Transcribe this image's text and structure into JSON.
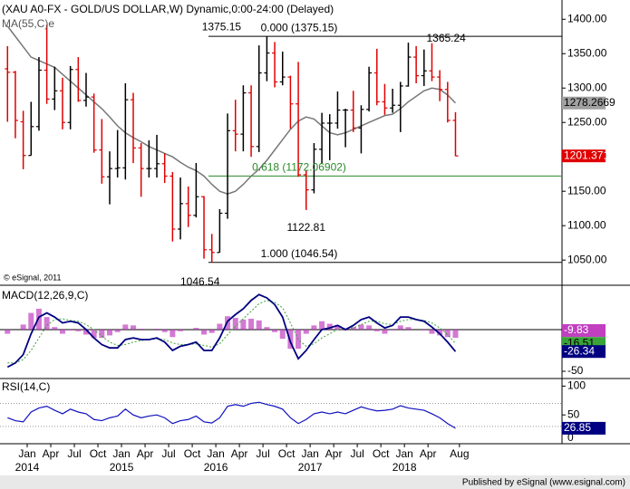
{
  "chart_data": {
    "type": "ohlc",
    "title": "(XAU A0-FX - GOLD/US DOLLAR,W) Dynamic,0:00-24:00 (Delayed)",
    "copyright": "© eSignal, 2011",
    "footer": "Published by eSignal (www.esignal.com)",
    "categories": [
      "2013-10",
      "2013-11",
      "2013-12",
      "2014-01",
      "2014-02",
      "2014-03",
      "2014-04",
      "2014-05",
      "2014-06",
      "2014-07",
      "2014-08",
      "2014-09",
      "2014-10",
      "2014-11",
      "2014-12",
      "2015-01",
      "2015-02",
      "2015-03",
      "2015-04",
      "2015-05",
      "2015-06",
      "2015-07",
      "2015-08",
      "2015-09",
      "2015-10",
      "2015-11",
      "2015-12",
      "2016-01",
      "2016-02",
      "2016-03",
      "2016-04",
      "2016-05",
      "2016-06",
      "2016-07",
      "2016-08",
      "2016-09",
      "2016-10",
      "2016-11",
      "2016-12",
      "2017-01",
      "2017-02",
      "2017-03",
      "2017-04",
      "2017-05",
      "2017-06",
      "2017-07",
      "2017-08",
      "2017-09",
      "2017-10",
      "2017-11",
      "2017-12",
      "2018-01",
      "2018-02",
      "2018-03",
      "2018-04",
      "2018-05",
      "2018-06",
      "2018-07"
    ],
    "open": [
      1328,
      1323,
      1251,
      1202,
      1244,
      1326,
      1284,
      1296,
      1250,
      1327,
      1282,
      1287,
      1210,
      1171,
      1183,
      1184,
      1283,
      1213,
      1183,
      1183,
      1190,
      1172,
      1095,
      1132,
      1115,
      1142,
      1065,
      1061,
      1118,
      1238,
      1233,
      1293,
      1215,
      1322,
      1351,
      1309,
      1316,
      1277,
      1174,
      1152,
      1211,
      1249,
      1249,
      1268,
      1268,
      1242,
      1269,
      1322,
      1280,
      1271,
      1275,
      1303,
      1345,
      1318,
      1325,
      1316,
      1298,
      1253
    ],
    "high": [
      1361,
      1325,
      1267,
      1280,
      1345,
      1392,
      1331,
      1315,
      1332,
      1345,
      1322,
      1292,
      1255,
      1208,
      1239,
      1307,
      1293,
      1220,
      1224,
      1232,
      1205,
      1178,
      1170,
      1157,
      1191,
      1143,
      1088,
      1124,
      1263,
      1283,
      1304,
      1304,
      1362,
      1375.15,
      1367,
      1353,
      1318,
      1338,
      1180,
      1220,
      1264,
      1262,
      1295,
      1270,
      1296,
      1275,
      1331,
      1357,
      1306,
      1299,
      1309,
      1366,
      1361,
      1356,
      1365.24,
      1326,
      1309,
      1265
    ],
    "low": [
      1251,
      1227,
      1182,
      1202,
      1238,
      1277,
      1268,
      1240,
      1240,
      1280,
      1273,
      1206,
      1161,
      1131,
      1170,
      1167,
      1191,
      1142,
      1170,
      1170,
      1162,
      1077,
      1080,
      1098,
      1112,
      1052,
      1046.54,
      1061,
      1110,
      1208,
      1208,
      1200,
      1207,
      1310,
      1301,
      1304,
      1241,
      1171,
      1122.81,
      1147,
      1190,
      1195,
      1241,
      1214,
      1236,
      1205,
      1266,
      1275,
      1261,
      1264,
      1236,
      1302,
      1307,
      1303,
      1310,
      1281,
      1250,
      1201
    ],
    "close": [
      1323,
      1253,
      1202,
      1244,
      1326,
      1284,
      1296,
      1250,
      1327,
      1282,
      1287,
      1210,
      1171,
      1183,
      1184,
      1283,
      1213,
      1183,
      1183,
      1190,
      1172,
      1095,
      1132,
      1115,
      1142,
      1065,
      1061,
      1118,
      1238,
      1233,
      1293,
      1215,
      1322,
      1351,
      1309,
      1316,
      1277,
      1174,
      1152,
      1211,
      1249,
      1249,
      1268,
      1268,
      1242,
      1269,
      1322,
      1280,
      1271,
      1275,
      1303,
      1345,
      1318,
      1325,
      1316,
      1298,
      1253,
      1201.371
    ],
    "up_color": "#000000",
    "down_color": "#e00000",
    "ylim": [
      1016,
      1428
    ],
    "yticks": [
      {
        "value": 1400,
        "label": "1400.00"
      },
      {
        "value": 1350,
        "label": "1350.00"
      },
      {
        "value": 1300,
        "label": "1300.00"
      },
      {
        "value": 1250,
        "label": "1250.00"
      },
      {
        "value": 1200,
        "label": "1200.00"
      },
      {
        "value": 1150,
        "label": "1150.00"
      },
      {
        "value": 1100,
        "label": "1100.00"
      },
      {
        "value": 1050,
        "label": "1050.00"
      }
    ],
    "ma": {
      "name": "MA(55,C)e",
      "color": "#777777",
      "label_color": "#a0a0a0",
      "values": [
        1390,
        1375,
        1360,
        1345,
        1340,
        1335,
        1330,
        1320,
        1310,
        1300,
        1290,
        1280,
        1270,
        1258,
        1245,
        1235,
        1228,
        1222,
        1215,
        1210,
        1205,
        1200,
        1192,
        1185,
        1180,
        1172,
        1160,
        1150,
        1146,
        1150,
        1160,
        1172,
        1182,
        1195,
        1210,
        1225,
        1240,
        1252,
        1258,
        1255,
        1245,
        1235,
        1232,
        1235,
        1240,
        1245,
        1250,
        1255,
        1260,
        1262,
        1270,
        1280,
        1288,
        1296,
        1300,
        1298,
        1290,
        1278.2669
      ]
    },
    "fib_levels": [
      {
        "label": "0.000 (1375.15)",
        "value": 1375.15,
        "color": "#000000"
      },
      {
        "label": "0.618 (1172.06902)",
        "value": 1172.06902,
        "color": "#2a8a2a"
      },
      {
        "label": "1.000 (1046.54)",
        "value": 1046.54,
        "color": "#000000"
      }
    ],
    "annotations": [
      {
        "label": "1375.15",
        "value": 1375.15,
        "x": "2016-07"
      },
      {
        "label": "1365.24",
        "value": 1365.24,
        "x": "2018-04"
      },
      {
        "label": "1122.81",
        "value": 1122.81,
        "x": "2016-12"
      },
      {
        "label": "1046.54",
        "value": 1046.54,
        "x": "2015-12"
      }
    ],
    "macd": {
      "title": "MACD(12,26,9,C)",
      "ylim": [
        -58.7,
        51
      ],
      "yticks": [
        0,
        -50
      ],
      "series": [
        {
          "name": "MACD",
          "color": "#000080",
          "values": [
            -45,
            -40,
            -30,
            -5,
            15,
            20,
            15,
            8,
            10,
            8,
            0,
            -10,
            -18,
            -22,
            -22,
            -12,
            -10,
            -12,
            -12,
            -10,
            -15,
            -25,
            -20,
            -18,
            -15,
            -25,
            -25,
            -10,
            10,
            18,
            25,
            35,
            42,
            38,
            30,
            15,
            -15,
            -35,
            -25,
            -12,
            0,
            2,
            5,
            0,
            5,
            12,
            15,
            8,
            2,
            5,
            15,
            15,
            12,
            10,
            3,
            -5,
            -15,
            -26.34
          ]
        },
        {
          "name": "Signal",
          "color": "#3aa33a",
          "values": [
            -40,
            -40,
            -36,
            -25,
            -10,
            5,
            12,
            13,
            11,
            10,
            6,
            0,
            -8,
            -15,
            -19,
            -18,
            -15,
            -13,
            -12,
            -11,
            -12,
            -16,
            -18,
            -18,
            -17,
            -19,
            -21,
            -17,
            -6,
            4,
            13,
            22,
            31,
            35,
            33,
            26,
            8,
            -12,
            -20,
            -17,
            -10,
            -5,
            0,
            1,
            2,
            6,
            10,
            10,
            7,
            6,
            10,
            12,
            12,
            11,
            8,
            2,
            -6,
            -16.51
          ]
        },
        {
          "name": "Histogram",
          "color": "#c040c0",
          "values": [
            -5,
            0,
            6,
            20,
            25,
            15,
            3,
            -5,
            -1,
            -2,
            -6,
            -10,
            -10,
            -7,
            -3,
            6,
            5,
            1,
            0,
            1,
            -3,
            -9,
            -2,
            0,
            2,
            -6,
            -4,
            7,
            16,
            14,
            12,
            13,
            11,
            3,
            -3,
            -11,
            -23,
            -23,
            -5,
            5,
            10,
            7,
            5,
            -1,
            3,
            6,
            5,
            -2,
            -5,
            -1,
            5,
            3,
            0,
            -1,
            -5,
            -7,
            -9,
            -9.83
          ]
        }
      ]
    },
    "rsi": {
      "title": "RSI(14,C)",
      "ylim": [
        0,
        110
      ],
      "yticks": [
        100,
        50,
        0
      ],
      "levels": [
        70,
        30
      ],
      "color": "#1010c0",
      "values": [
        45,
        40,
        38,
        55,
        62,
        65,
        58,
        52,
        60,
        55,
        52,
        42,
        40,
        45,
        48,
        60,
        50,
        45,
        48,
        50,
        45,
        35,
        40,
        42,
        48,
        38,
        36,
        45,
        65,
        68,
        65,
        70,
        72,
        68,
        65,
        60,
        45,
        35,
        42,
        52,
        55,
        52,
        55,
        52,
        58,
        64,
        60,
        57,
        58,
        60,
        66,
        62,
        60,
        58,
        52,
        45,
        35,
        26.85
      ]
    },
    "xticks": [
      {
        "value": "2014-01",
        "label": "Jan"
      },
      {
        "value": "2014-04",
        "label": "Apr"
      },
      {
        "value": "2014-07",
        "label": "Jul"
      },
      {
        "value": "2014-10",
        "label": "Oct"
      },
      {
        "value": "2015-01",
        "label": "Jan"
      },
      {
        "value": "2015-04",
        "label": "Apr"
      },
      {
        "value": "2015-07",
        "label": "Jul"
      },
      {
        "value": "2015-10",
        "label": "Oct"
      },
      {
        "value": "2016-01",
        "label": "Jan"
      },
      {
        "value": "2016-04",
        "label": "Apr"
      },
      {
        "value": "2016-07",
        "label": "Jul"
      },
      {
        "value": "2016-10",
        "label": "Oct"
      },
      {
        "value": "2017-01",
        "label": "Jan"
      },
      {
        "value": "2017-04",
        "label": "Apr"
      },
      {
        "value": "2017-07",
        "label": "Jul"
      },
      {
        "value": "2017-10",
        "label": "Oct"
      },
      {
        "value": "2018-01",
        "label": "Jan"
      },
      {
        "value": "2018-04",
        "label": "Apr"
      },
      {
        "value": "2018-08",
        "label": "Aug"
      }
    ],
    "xyears": [
      {
        "value": "2014-01",
        "label": "2014"
      },
      {
        "value": "2015-01",
        "label": "2015"
      },
      {
        "value": "2016-01",
        "label": "2016"
      },
      {
        "value": "2017-01",
        "label": "2017"
      },
      {
        "value": "2018-01",
        "label": "2018"
      }
    ]
  }
}
